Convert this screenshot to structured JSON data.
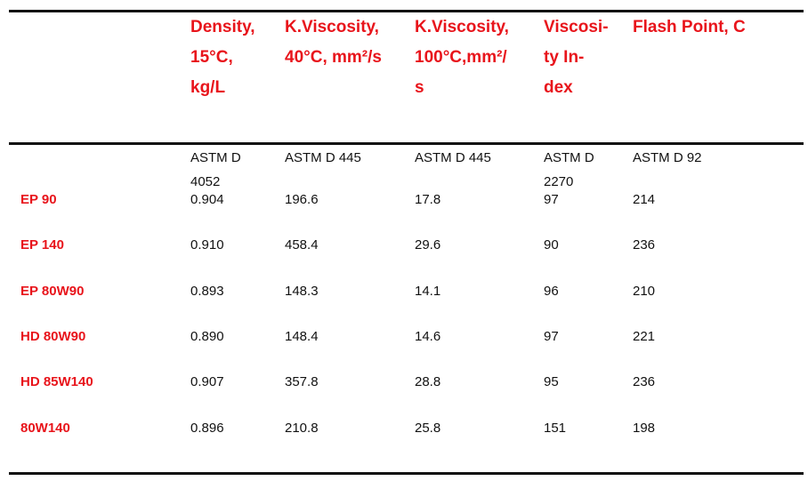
{
  "headers": [
    {
      "lines": [
        "Density,",
        "15°C,",
        "kg/L"
      ]
    },
    {
      "lines": [
        "K.Viscosity,",
        "40°C, mm²/s"
      ]
    },
    {
      "lines": [
        "K.Viscosity,",
        "100°C,mm²/",
        "s"
      ]
    },
    {
      "lines": [
        "Viscosi-",
        "ty In-",
        "dex"
      ]
    },
    {
      "lines": [
        "Flash Point, C"
      ]
    }
  ],
  "methods": [
    {
      "lines": [
        "ASTM D",
        "4052"
      ]
    },
    {
      "lines": [
        "ASTM D 445"
      ]
    },
    {
      "lines": [
        "ASTM D 445"
      ]
    },
    {
      "lines": [
        "ASTM D",
        "2270"
      ]
    },
    {
      "lines": [
        "ASTM D 92"
      ]
    }
  ],
  "rows": [
    {
      "name": "EP 90",
      "values": [
        "0.904",
        "196.6",
        "17.8",
        "97",
        "214"
      ]
    },
    {
      "name": "EP 140",
      "values": [
        "0.910",
        "458.4",
        "29.6",
        "90",
        "236"
      ]
    },
    {
      "name": "EP 80W90",
      "values": [
        "0.893",
        "148.3",
        "14.1",
        "96",
        "210"
      ]
    },
    {
      "name": "HD 80W90",
      "values": [
        "0.890",
        "148.4",
        "14.6",
        "97",
        "221"
      ]
    },
    {
      "name": "HD 85W140",
      "values": [
        "0.907",
        "357.8",
        "28.8",
        "95",
        "236"
      ]
    },
    {
      "name": "80W140",
      "values": [
        "0.896",
        "210.8",
        "25.8",
        "151",
        "198"
      ]
    }
  ],
  "colors": {
    "label": "#e8141b",
    "text": "#111111",
    "rule": "#111111"
  }
}
